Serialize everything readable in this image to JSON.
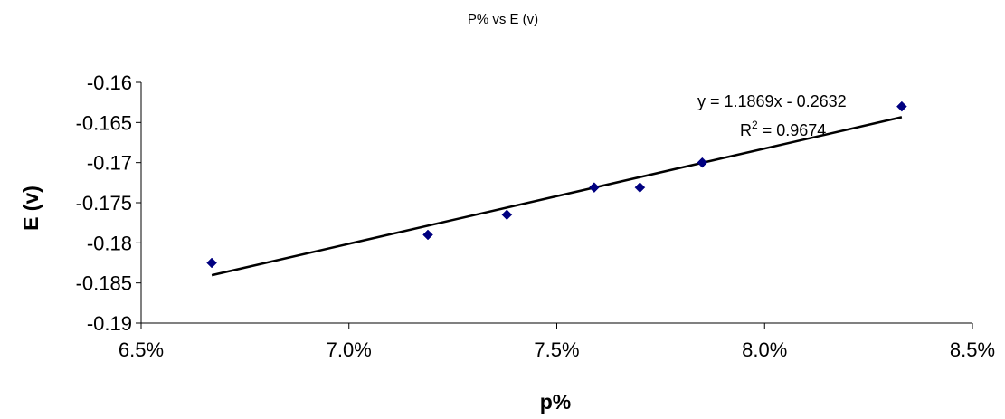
{
  "chart_data": {
    "type": "scatter",
    "title": "P% vs E (v)",
    "xlabel": "p%",
    "ylabel": "E (v)",
    "xlim": [
      0.065,
      0.085
    ],
    "ylim": [
      -0.19,
      -0.16
    ],
    "x_ticks": [
      0.065,
      0.07,
      0.075,
      0.08,
      0.085
    ],
    "x_tick_labels": [
      "6.5%",
      "7.0%",
      "7.5%",
      "8.0%",
      "8.5%"
    ],
    "y_ticks": [
      -0.16,
      -0.165,
      -0.17,
      -0.175,
      -0.18,
      -0.185,
      -0.19
    ],
    "y_tick_labels": [
      "-0.16",
      "-0.165",
      "-0.17",
      "-0.175",
      "-0.18",
      "-0.185",
      "-0.19"
    ],
    "grid": false,
    "series": [
      {
        "marker": "diamond",
        "color": "#000080",
        "points": [
          {
            "x": 0.0667,
            "y": -0.1825
          },
          {
            "x": 0.0719,
            "y": -0.179
          },
          {
            "x": 0.0738,
            "y": -0.1765
          },
          {
            "x": 0.0759,
            "y": -0.1731
          },
          {
            "x": 0.077,
            "y": -0.1731
          },
          {
            "x": 0.0785,
            "y": -0.17
          },
          {
            "x": 0.0833,
            "y": -0.163
          }
        ]
      }
    ],
    "trendline": {
      "type": "linear",
      "slope": 1.1869,
      "intercept": -0.2632,
      "x_range": [
        0.0667,
        0.0833
      ],
      "color": "#000000",
      "equation": "y = 1.1869x - 0.2632",
      "r_squared_prefix": "R",
      "r_squared_exponent": "2",
      "r_squared_value": " = 0.9674"
    }
  }
}
